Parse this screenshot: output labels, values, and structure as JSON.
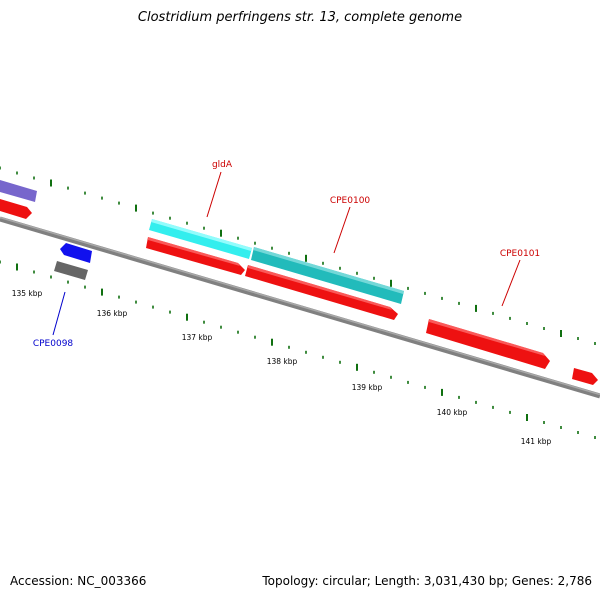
{
  "title": "Clostridium perfringens str. 13, complete genome",
  "footer": {
    "accession": "Accession: NC_003366",
    "summary": "Topology: circular; Length: 3,031,430 bp; Genes: 2,786"
  },
  "colors": {
    "backbone": "#808080",
    "tick": "#107010",
    "gene_red": "#ee1111",
    "gene_cyan": "#33eeee",
    "gene_teal": "#22bbbb",
    "gene_blue": "#1111ee",
    "gene_gray": "#666666",
    "gene_purple": "#7766cc",
    "label_red": "#cc0000",
    "label_blue": "#0000cc"
  },
  "scale_labels": [
    "135 kbp",
    "136 kbp",
    "137 kbp",
    "138 kbp",
    "139 kbp",
    "140 kbp",
    "141 kbp"
  ],
  "gene_labels": [
    {
      "name": "gldA",
      "color": "label_red"
    },
    {
      "name": "CPE0100",
      "color": "label_red"
    },
    {
      "name": "CPE0101",
      "color": "label_red"
    },
    {
      "name": "CPE0098",
      "color": "label_blue"
    }
  ]
}
